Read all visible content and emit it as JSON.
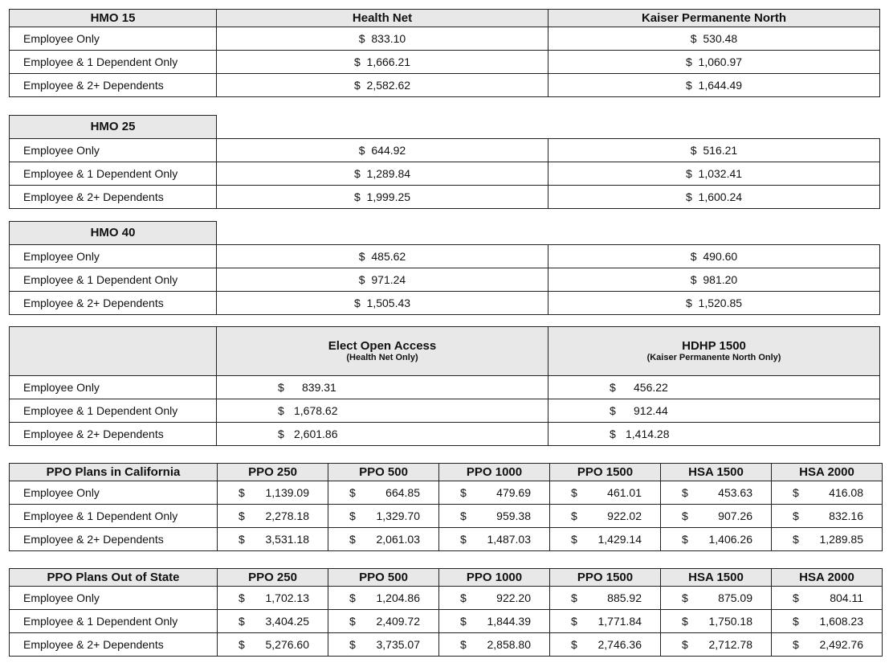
{
  "currency": "$",
  "row_labels": [
    "Employee Only",
    "Employee & 1 Dependent Only",
    "Employee & 2+ Dependents"
  ],
  "hmo_tables": [
    {
      "title": "HMO 15",
      "carriers": [
        "Health Net",
        "Kaiser Permanente North"
      ],
      "rows": [
        [
          "833.10",
          "530.48"
        ],
        [
          "1,666.21",
          "1,060.97"
        ],
        [
          "2,582.62",
          "1,644.49"
        ]
      ]
    },
    {
      "title": "HMO 25",
      "carriers": [],
      "rows": [
        [
          "644.92",
          "516.21"
        ],
        [
          "1,289.84",
          "1,032.41"
        ],
        [
          "1,999.25",
          "1,600.24"
        ]
      ]
    },
    {
      "title": "HMO 40",
      "carriers": [],
      "rows": [
        [
          "485.62",
          "490.60"
        ],
        [
          "971.24",
          "981.20"
        ],
        [
          "1,505.43",
          "1,520.85"
        ]
      ]
    }
  ],
  "special_table": {
    "title": "",
    "columns": [
      {
        "name": "Elect Open Access",
        "note": "(Health Net Only)"
      },
      {
        "name": "HDHP 1500",
        "note": "(Kaiser Permanente North Only)"
      }
    ],
    "rows": [
      [
        "839.31",
        "456.22"
      ],
      [
        "1,678.62",
        "912.44"
      ],
      [
        "2,601.86",
        "1,414.28"
      ]
    ]
  },
  "ppo_tables": [
    {
      "title": "PPO Plans in California",
      "columns": [
        "PPO 250",
        "PPO 500",
        "PPO 1000",
        "PPO 1500",
        "HSA 1500",
        "HSA 2000"
      ],
      "rows": [
        [
          "1,139.09",
          "664.85",
          "479.69",
          "461.01",
          "453.63",
          "416.08"
        ],
        [
          "2,278.18",
          "1,329.70",
          "959.38",
          "922.02",
          "907.26",
          "832.16"
        ],
        [
          "3,531.18",
          "2,061.03",
          "1,487.03",
          "1,429.14",
          "1,406.26",
          "1,289.85"
        ]
      ]
    },
    {
      "title": "PPO Plans Out of State",
      "columns": [
        "PPO 250",
        "PPO 500",
        "PPO 1000",
        "PPO 1500",
        "HSA 1500",
        "HSA 2000"
      ],
      "rows": [
        [
          "1,702.13",
          "1,204.86",
          "922.20",
          "885.92",
          "875.09",
          "804.11"
        ],
        [
          "3,404.25",
          "2,409.72",
          "1,844.39",
          "1,771.84",
          "1,750.18",
          "1,608.23"
        ],
        [
          "5,276.60",
          "3,735.07",
          "2,858.80",
          "2,746.36",
          "2,712.78",
          "2,492.76"
        ]
      ]
    }
  ]
}
